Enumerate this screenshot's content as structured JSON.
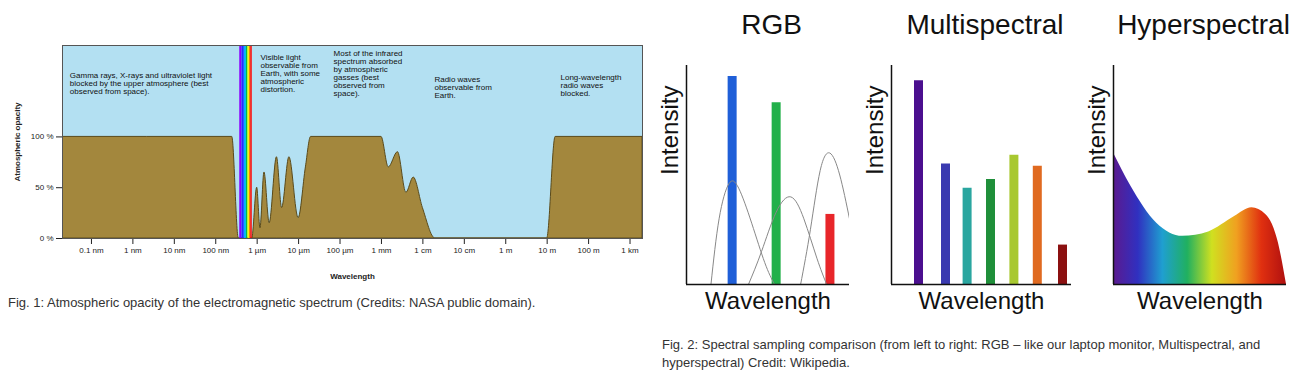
{
  "chart_data": [
    {
      "type": "area",
      "x_label": "Wavelength",
      "y_label": "Atmospheric opacity",
      "caption": "Fig. 1: Atmospheric opacity of the electromagnetic spectrum (Credits: NASA public domain).",
      "log": "x",
      "grid": false,
      "color": "#a3873d",
      "x": [
        2e-11,
        2.5e-07,
        3.6e-07,
        7.6e-07,
        1e-06,
        1.2e-06,
        1.5e-06,
        2e-06,
        3e-06,
        4e-06,
        6e-06,
        1e-05,
        1.5e-05,
        2e-05,
        0.001,
        0.0015,
        0.0025,
        0.004,
        0.006,
        0.01,
        0.02,
        10.0,
        16.0,
        2000
      ],
      "values": [
        100,
        100,
        0,
        0,
        50,
        10,
        65,
        15,
        80,
        30,
        80,
        20,
        70,
        100,
        100,
        70,
        85,
        45,
        60,
        30,
        0,
        0,
        100,
        100
      ],
      "xlim": [
        2e-11,
        2000
      ],
      "xticks": [
        {
          "value": 1e-10,
          "label": "0.1 nm"
        },
        {
          "value": 1e-09,
          "label": "1 nm"
        },
        {
          "value": 1e-08,
          "label": "10 nm"
        },
        {
          "value": 1e-07,
          "label": "100 nm"
        },
        {
          "value": 1e-06,
          "label": "1 µm"
        },
        {
          "value": 1e-05,
          "label": "10 µm"
        },
        {
          "value": 0.0001,
          "label": "100 µm"
        },
        {
          "value": 0.001,
          "label": "1 mm"
        },
        {
          "value": 0.01,
          "label": "1 cm"
        },
        {
          "value": 0.1,
          "label": "10 cm"
        },
        {
          "value": 1,
          "label": "1 m"
        },
        {
          "value": 10,
          "label": "10 m"
        },
        {
          "value": 100,
          "label": "100 m"
        },
        {
          "value": 1000,
          "label": "1 km"
        }
      ],
      "ylim": [
        0,
        190
      ],
      "yticks": [
        {
          "value": 0,
          "label": "0 %"
        },
        {
          "value": 50,
          "label": "50 %"
        },
        {
          "value": 100,
          "label": "100 %"
        }
      ],
      "visible_band": {
        "x": [
          3.8e-07,
          4.3e-07,
          4.9e-07,
          5.5e-07,
          6e-07,
          6.5e-07,
          7e-07,
          7.6e-07
        ],
        "colors": [
          "#8b00ff",
          "#2030ff",
          "#00b0ff",
          "#00c040",
          "#ffff00",
          "#ff8000",
          "#ff0000"
        ]
      },
      "annotations": [
        {
          "text": "Gamma rays, X-rays and ultraviolet light blocked by the upper atmosphere (best observed from space).",
          "x": 3e-11,
          "y": 164
        },
        {
          "text": "Visible light observable from Earth, with some atmospheric distortion.",
          "x": 1.2e-06,
          "y": 181
        },
        {
          "text": "Most of the infrared spectrum absorbed by atmospheric gasses (best observed from space).",
          "x": 7e-05,
          "y": 185
        },
        {
          "text": "Radio waves observable from Earth.",
          "x": 0.019,
          "y": 160
        },
        {
          "text": "Long-wavelength radio waves blocked.",
          "x": 21,
          "y": 162
        }
      ]
    },
    {
      "type": "bar",
      "title": "RGB",
      "x_label": "Wavelength",
      "y_label": "Intensity",
      "caption": "Fig. 2: Spectral sampling comparison (from left to right: RGB – like our laptop monitor, Multispectral, and hyperspectral) Credit: Wikipedia.",
      "tick_labels": false,
      "x": [
        28,
        55,
        88
      ],
      "values": [
        95,
        83,
        32
      ],
      "colors": [
        "#1f5fd8",
        "#22b04a",
        "#e8262a"
      ],
      "series": [
        {
          "type": "line",
          "color": "#888888",
          "x": [
            15,
            20,
            26,
            32,
            40,
            48,
            54
          ],
          "values": [
            0,
            30,
            46,
            44,
            28,
            10,
            0
          ]
        },
        {
          "type": "line",
          "color": "#888888",
          "x": [
            38,
            46,
            55,
            64,
            72,
            80,
            86
          ],
          "values": [
            0,
            15,
            33,
            40,
            30,
            12,
            0
          ]
        },
        {
          "type": "line",
          "color": "#888888",
          "x": [
            70,
            76,
            82,
            88,
            94,
            100
          ],
          "values": [
            0,
            25,
            52,
            60,
            50,
            30
          ]
        }
      ],
      "xlim": [
        0,
        100
      ],
      "ylim": [
        0,
        100
      ]
    },
    {
      "type": "bar",
      "title": "Multispectral",
      "x_label": "Wavelength",
      "y_label": "Intensity",
      "tick_labels": false,
      "x": [
        15,
        30,
        42,
        55,
        68,
        81,
        95
      ],
      "values": [
        93,
        55,
        44,
        48,
        59,
        54,
        18
      ],
      "colors": [
        "#4b0f8f",
        "#3a3ab0",
        "#2aa6a0",
        "#1f8f3a",
        "#a8c830",
        "#e06a20",
        "#8b1010"
      ],
      "xlim": [
        0,
        100
      ],
      "ylim": [
        0,
        100
      ]
    },
    {
      "type": "area",
      "title": "Hyperspectral",
      "x_label": "Wavelength",
      "y_label": "Intensity",
      "tick_labels": false,
      "x": [
        0,
        10,
        25,
        40,
        55,
        70,
        80,
        88,
        95,
        100
      ],
      "values": [
        60,
        45,
        28,
        22,
        24,
        31,
        35,
        32,
        20,
        0
      ],
      "colors": [
        "#5b1a8f",
        "#3030c0",
        "#1f9fd0",
        "#20b060",
        "#d0e020",
        "#f0a020",
        "#e03010",
        "#b01010"
      ],
      "xlim": [
        0,
        100
      ],
      "ylim": [
        0,
        100
      ]
    }
  ]
}
